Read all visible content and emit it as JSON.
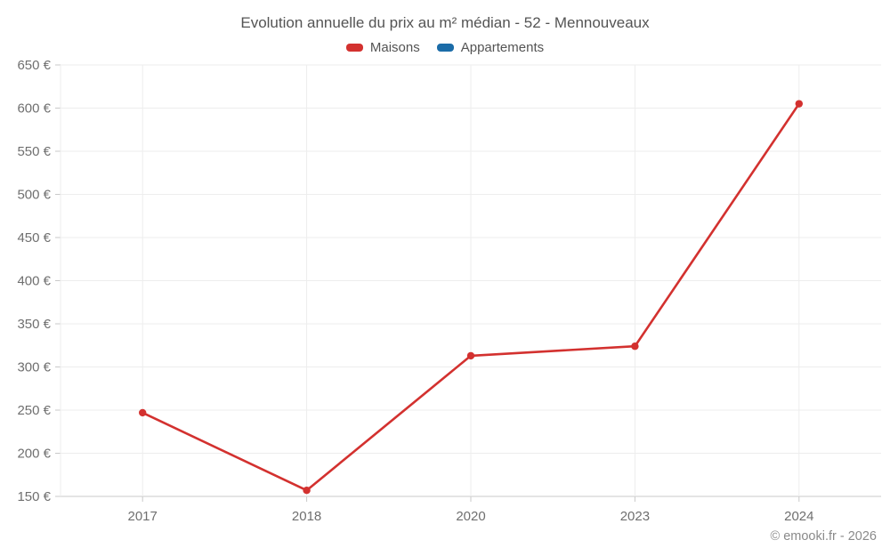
{
  "page": {
    "footer": "© emooki.fr - 2026"
  },
  "chart_data": {
    "type": "line",
    "title": "Evolution annuelle du prix au m² médian - 52 - Mennouveaux",
    "categories": [
      "2017",
      "2018",
      "2020",
      "2023",
      "2024"
    ],
    "series": [
      {
        "name": "Maisons",
        "color": "#d3312f",
        "values": [
          247,
          157,
          313,
          324,
          605
        ]
      },
      {
        "name": "Appartements",
        "color": "#1b6ca8",
        "values": []
      }
    ],
    "xlabel": "",
    "ylabel": "",
    "ylim": [
      150,
      650
    ],
    "y_ticks": [
      150,
      200,
      250,
      300,
      350,
      400,
      450,
      500,
      550,
      600,
      650
    ],
    "y_tick_suffix": " €",
    "grid": true,
    "legend_position": "top",
    "colors": {
      "grid_line": "#ededed",
      "axis_line": "#c9c9c9",
      "tick_label": "#6f6f6f",
      "title_text": "#545454",
      "footer_text": "#8a8a8a"
    }
  }
}
